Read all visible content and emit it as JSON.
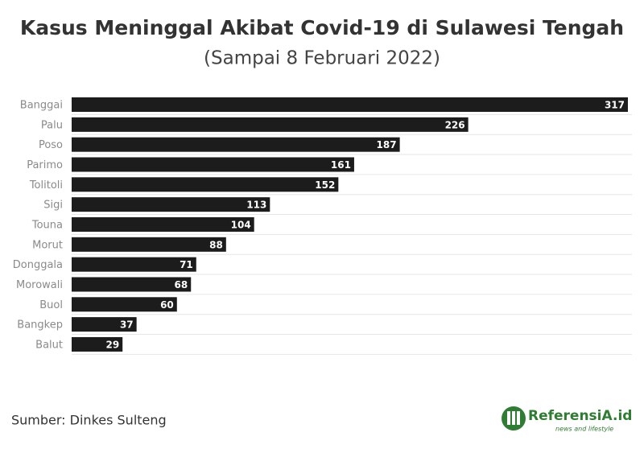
{
  "chart_data": {
    "type": "bar",
    "orientation": "horizontal",
    "title": "Kasus Meninggal Akibat Covid-19 di Sulawesi Tengah",
    "subtitle": "(Sampai 8 Februari 2022)",
    "categories": [
      "Banggai",
      "Palu",
      "Poso",
      "Parimo",
      "Tolitoli",
      "Sigi",
      "Touna",
      "Morut",
      "Donggala",
      "Morowali",
      "Buol",
      "Bangkep",
      "Balut"
    ],
    "values": [
      317,
      226,
      187,
      161,
      152,
      113,
      104,
      88,
      71,
      68,
      60,
      37,
      29
    ],
    "color": "#1c1c1c",
    "source": "Sumber: Dinkes Sulteng"
  },
  "logo": {
    "name": "ReferensiA.id",
    "tagline": "news and lifestyle"
  }
}
